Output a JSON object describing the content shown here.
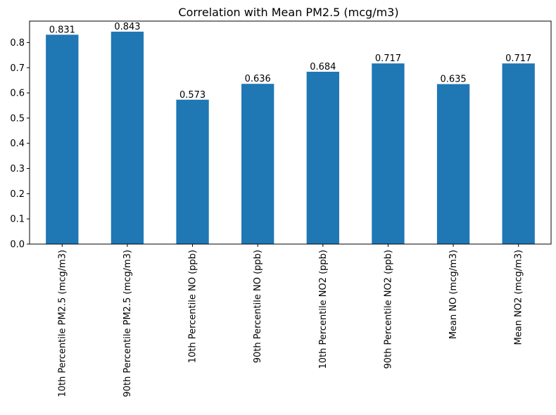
{
  "chart_data": {
    "type": "bar",
    "title": "Correlation with Mean PM2.5 (mcg/m3)",
    "xlabel": "",
    "ylabel": "",
    "categories": [
      "10th Percentile PM2.5 (mcg/m3)",
      "90th Percentile PM2.5 (mcg/m3)",
      "10th Percentile NO (ppb)",
      "90th Percentile NO (ppb)",
      "10th Percentile NO2 (ppb)",
      "90th Percentile NO2 (ppb)",
      "Mean NO (mcg/m3)",
      "Mean NO2 (mcg/m3)"
    ],
    "values": [
      0.831,
      0.843,
      0.573,
      0.636,
      0.684,
      0.717,
      0.635,
      0.717
    ],
    "value_labels": [
      "0.831",
      "0.843",
      "0.573",
      "0.636",
      "0.684",
      "0.717",
      "0.635",
      "0.717"
    ],
    "ylim": [
      0,
      0.885
    ],
    "yticks": [
      0.0,
      0.1,
      0.2,
      0.3,
      0.4,
      0.5,
      0.6,
      0.7,
      0.8
    ],
    "ytick_labels": [
      "0.0",
      "0.1",
      "0.2",
      "0.3",
      "0.4",
      "0.5",
      "0.6",
      "0.7",
      "0.8"
    ],
    "grid": false,
    "bar_color": "#1f77b4"
  }
}
